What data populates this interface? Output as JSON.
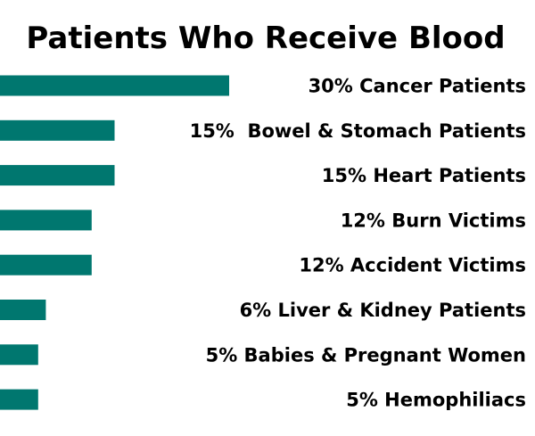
{
  "chart_data": {
    "type": "bar",
    "orientation": "horizontal",
    "title": "Patients Who Receive Blood",
    "categories": [
      "30% Cancer Patients",
      "15%  Bowel & Stomach Patients",
      "15% Heart Patients",
      "12% Burn Victims",
      "12% Accident Victims",
      "6% Liver & Kidney Patients",
      "5% Babies & Pregnant Women",
      "5% Hemophiliacs"
    ],
    "values": [
      30,
      15,
      15,
      12,
      12,
      6,
      5,
      5
    ],
    "unit": "%",
    "bar_color": "#00776f",
    "grid": false,
    "legend": "none"
  }
}
